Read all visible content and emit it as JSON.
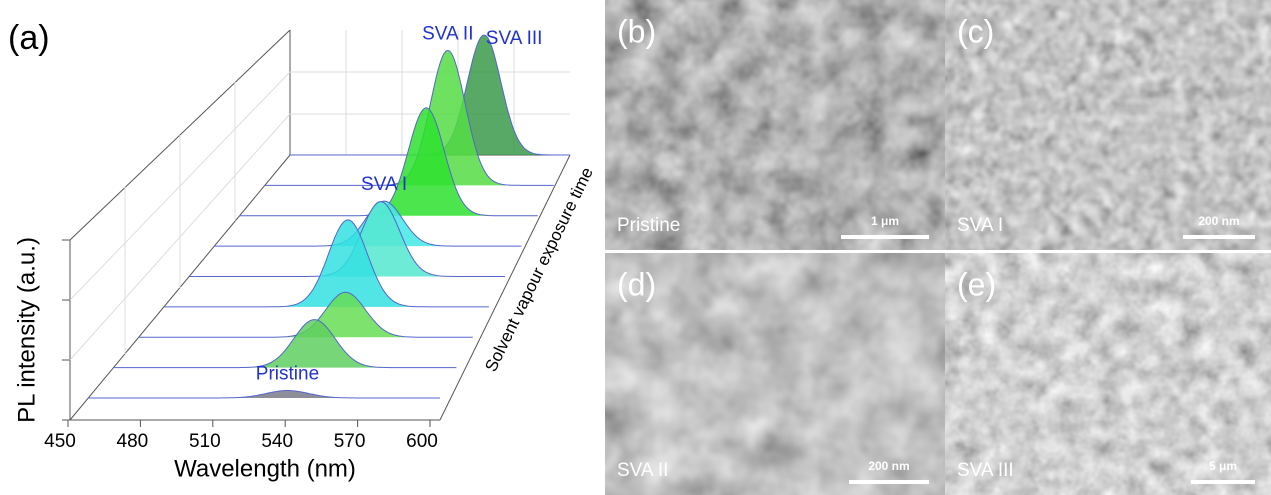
{
  "panel_label": "(a)",
  "chart_data": {
    "type": "waterfall",
    "xlabel": "Wavelength (nm)",
    "ylabel": "PL intensity (a.u.)",
    "zlabel": "Solvent vapour exposure time",
    "xlim": [
      450,
      600
    ],
    "xticks": [
      450,
      480,
      510,
      540,
      570,
      600
    ],
    "ylim": [
      0,
      1
    ],
    "series": [
      {
        "name": "Pristine",
        "color": "#7a7a8a",
        "peak": 535,
        "intensity": 0.05
      },
      {
        "color": "#5fcf5f",
        "peak": 538,
        "intensity": 0.32
      },
      {
        "color": "#66dd55",
        "peak": 543,
        "intensity": 0.3
      },
      {
        "color": "#33e0e0",
        "peak": 535,
        "intensity": 0.58
      },
      {
        "color": "#55e8d0",
        "peak": 541,
        "intensity": 0.5
      },
      {
        "name": "SVA I",
        "color": "#44e8e8",
        "peak": 533,
        "intensity": 0.3
      },
      {
        "color": "#2ee02e",
        "peak": 544,
        "intensity": 0.72
      },
      {
        "name": "SVA II",
        "color": "#55dd44",
        "peak": 545,
        "intensity": 0.9
      },
      {
        "name": "SVA III",
        "color": "#3a9a4a",
        "peak": 554,
        "intensity": 0.8
      }
    ]
  },
  "panels": [
    {
      "label": "(b)",
      "caption": "Pristine",
      "scale_bar": "1 μm"
    },
    {
      "label": "(c)",
      "caption": "SVA I",
      "scale_bar": "200 nm"
    },
    {
      "label": "(d)",
      "caption": "SVA II",
      "scale_bar": "200 nm"
    },
    {
      "label": "(e)",
      "caption": "SVA III",
      "scale_bar": "5 μm"
    }
  ]
}
